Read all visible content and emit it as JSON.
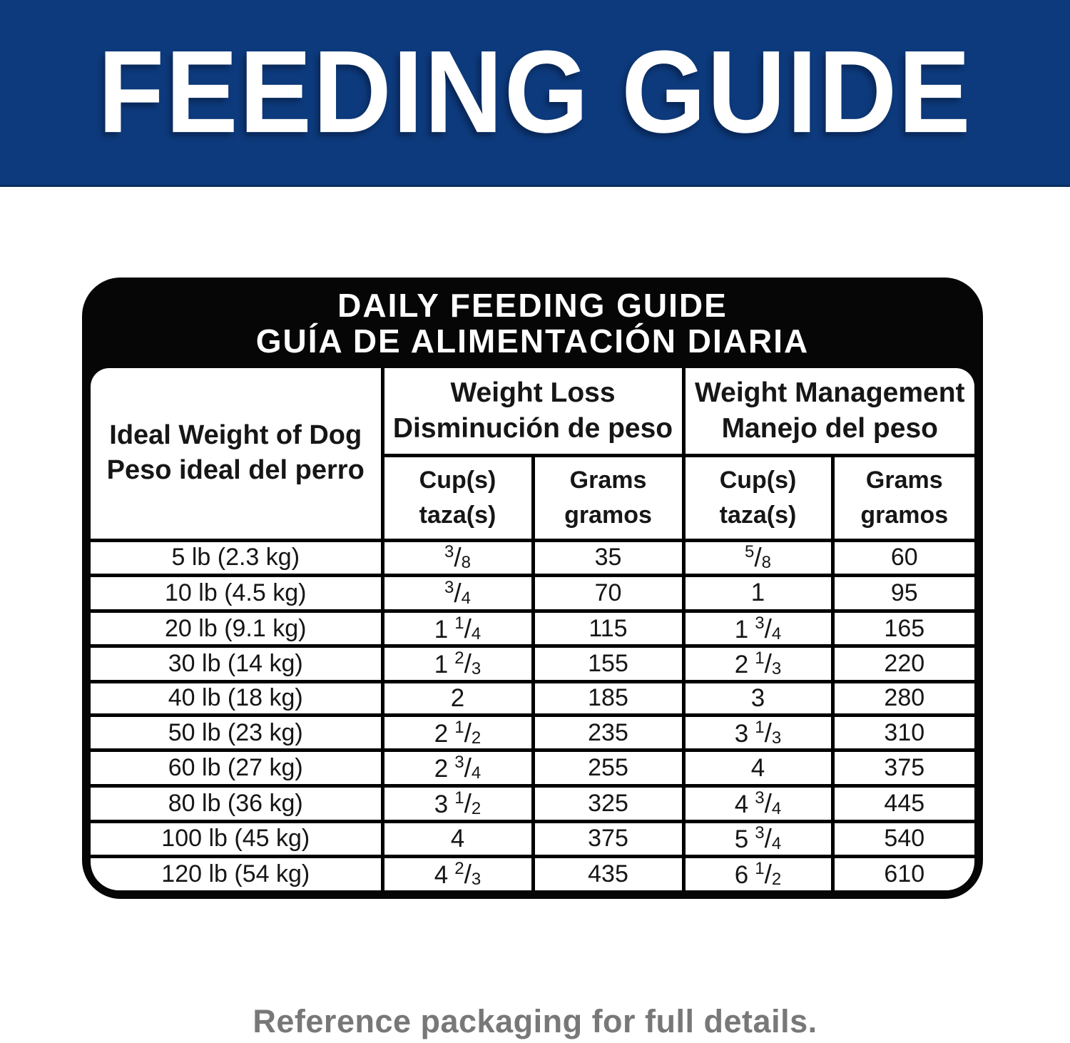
{
  "banner": {
    "title": "FEEDING GUIDE",
    "background_color": "#0d3a7c",
    "text_color": "#ffffff"
  },
  "table": {
    "title_line1": "DAILY FEEDING GUIDE",
    "title_line2": "GUÍA DE ALIMENTACIÓN DIARIA",
    "row_header": {
      "line1": "Ideal Weight of Dog",
      "line2": "Peso ideal del perro"
    },
    "groups": [
      {
        "en": "Weight Loss",
        "es": "Disminución de peso"
      },
      {
        "en": "Weight Management",
        "es": "Manejo del peso"
      }
    ],
    "unit_headers": {
      "cups_en": "Cup(s)",
      "cups_es": "taza(s)",
      "grams_en": "Grams",
      "grams_es": "gramos"
    },
    "rows": [
      {
        "weight": "5 lb (2.3 kg)",
        "weight_loss_cups": "3/8",
        "weight_loss_grams": "35",
        "weight_mgmt_cups": "5/8",
        "weight_mgmt_grams": "60"
      },
      {
        "weight": "10 lb (4.5 kg)",
        "weight_loss_cups": "3/4",
        "weight_loss_grams": "70",
        "weight_mgmt_cups": "1",
        "weight_mgmt_grams": "95"
      },
      {
        "weight": "20 lb (9.1 kg)",
        "weight_loss_cups": "1 1/4",
        "weight_loss_grams": "115",
        "weight_mgmt_cups": "1 3/4",
        "weight_mgmt_grams": "165"
      },
      {
        "weight": "30 lb (14 kg)",
        "weight_loss_cups": "1 2/3",
        "weight_loss_grams": "155",
        "weight_mgmt_cups": "2 1/3",
        "weight_mgmt_grams": "220"
      },
      {
        "weight": "40 lb (18 kg)",
        "weight_loss_cups": "2",
        "weight_loss_grams": "185",
        "weight_mgmt_cups": "3",
        "weight_mgmt_grams": "280"
      },
      {
        "weight": "50 lb (23 kg)",
        "weight_loss_cups": "2 1/2",
        "weight_loss_grams": "235",
        "weight_mgmt_cups": "3 1/3",
        "weight_mgmt_grams": "310"
      },
      {
        "weight": "60 lb (27 kg)",
        "weight_loss_cups": "2 3/4",
        "weight_loss_grams": "255",
        "weight_mgmt_cups": "4",
        "weight_mgmt_grams": "375"
      },
      {
        "weight": "80 lb (36 kg)",
        "weight_loss_cups": "3 1/2",
        "weight_loss_grams": "325",
        "weight_mgmt_cups": "4 3/4",
        "weight_mgmt_grams": "445"
      },
      {
        "weight": "100 lb (45 kg)",
        "weight_loss_cups": "4",
        "weight_loss_grams": "375",
        "weight_mgmt_cups": "5 3/4",
        "weight_mgmt_grams": "540"
      },
      {
        "weight": "120 lb (54 kg)",
        "weight_loss_cups": "4 2/3",
        "weight_loss_grams": "435",
        "weight_mgmt_cups": "6 1/2",
        "weight_mgmt_grams": "610"
      }
    ]
  },
  "footer": {
    "note": "Reference packaging for full details.",
    "text_color": "#787878"
  }
}
